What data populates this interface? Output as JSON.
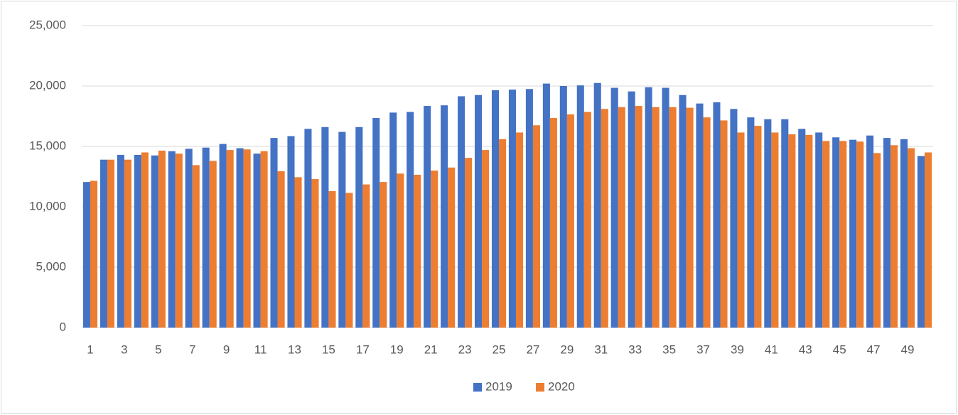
{
  "chart_data": {
    "type": "bar",
    "categories": [
      "1",
      null,
      "3",
      null,
      "5",
      null,
      "7",
      null,
      "9",
      null,
      "11",
      null,
      "13",
      null,
      "15",
      null,
      "17",
      null,
      "19",
      null,
      "21",
      null,
      "23",
      null,
      "25",
      null,
      "27",
      null,
      "29",
      null,
      "31",
      null,
      "33",
      null,
      "35",
      null,
      "37",
      null,
      "39",
      null,
      "41",
      null,
      "43",
      null,
      "45",
      null,
      "47",
      null,
      "49",
      null
    ],
    "series": [
      {
        "name": "2019",
        "color": "#4472c4",
        "values": [
          12050,
          13900,
          14300,
          14300,
          14250,
          14600,
          14800,
          14900,
          15200,
          14850,
          14400,
          15700,
          15850,
          16450,
          16600,
          16200,
          16600,
          17350,
          17800,
          17850,
          18350,
          18400,
          19150,
          19250,
          19650,
          19700,
          19750,
          20200,
          20000,
          20050,
          20250,
          19850,
          19550,
          19900,
          19850,
          19250,
          18550,
          18650,
          18100,
          17400,
          17250,
          17250,
          16450,
          16150,
          15750,
          15550,
          15900,
          15700,
          15600,
          14200
        ]
      },
      {
        "name": "2020",
        "color": "#ed7d31",
        "values": [
          12150,
          13900,
          13900,
          14500,
          14650,
          14400,
          13450,
          13800,
          14700,
          14750,
          14600,
          12950,
          12450,
          12300,
          11300,
          11150,
          11850,
          12050,
          12750,
          12650,
          13000,
          13250,
          14050,
          14700,
          15600,
          16150,
          16750,
          17350,
          17650,
          17850,
          18100,
          18250,
          18350,
          18250,
          18250,
          18200,
          17400,
          17150,
          16150,
          16700,
          16150,
          16000,
          15950,
          15450,
          15450,
          15400,
          14450,
          15100,
          14850,
          14500
        ]
      }
    ],
    "ylim": [
      0,
      25000
    ],
    "yticks": [
      0,
      {
        "value": 5000,
        "label": "5,000"
      },
      {
        "value": 10000,
        "label": "10,000"
      },
      {
        "value": 15000,
        "label": "15,000"
      },
      {
        "value": 20000,
        "label": "20,000"
      },
      {
        "value": 25000,
        "label": "25,000"
      }
    ],
    "grid": true,
    "legend": "bottom"
  }
}
